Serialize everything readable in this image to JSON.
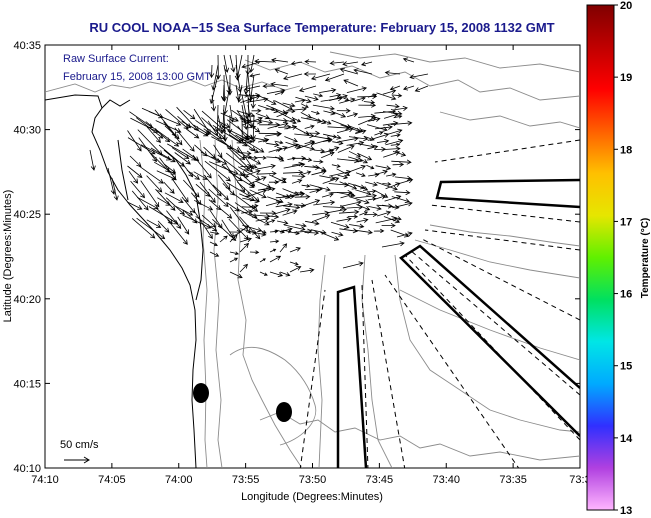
{
  "chart_data": {
    "type": "map",
    "title": "RU COOL  NOAA−15  Sea Surface Temperature:  February 15, 2008 1132 GMT",
    "annotation": {
      "line1": "Raw Surface Current:",
      "line2": "February 15, 2008 13:00 GMT"
    },
    "scale_label": "50 cm/s",
    "xlabel": "Longitude (Degrees:Minutes)",
    "ylabel": "Latitude (Degrees:Minutes)",
    "x_ticks": [
      "74:10",
      "74:05",
      "74:00",
      "73:55",
      "73:50",
      "73:45",
      "73:40",
      "73:35",
      "73:3"
    ],
    "y_ticks": [
      "40:35",
      "40:30",
      "40:25",
      "40:20",
      "40:15",
      "40:10"
    ],
    "colorbar": {
      "label": "Temperature (°C)",
      "min": 13,
      "max": 20,
      "ticks": [
        "20",
        "19",
        "18",
        "17",
        "16",
        "15",
        "14",
        "13"
      ],
      "colors": [
        "#ffb6ff",
        "#b040e0",
        "#3030ff",
        "#00aaff",
        "#00e6e6",
        "#00e060",
        "#60f000",
        "#e6e600",
        "#ffc000",
        "#ff6000",
        "#ff0000",
        "#c00000",
        "#800000"
      ]
    },
    "colors": {
      "title": "#1a1a8c",
      "contour": "#8c8c8c",
      "vector": "#000000"
    }
  }
}
